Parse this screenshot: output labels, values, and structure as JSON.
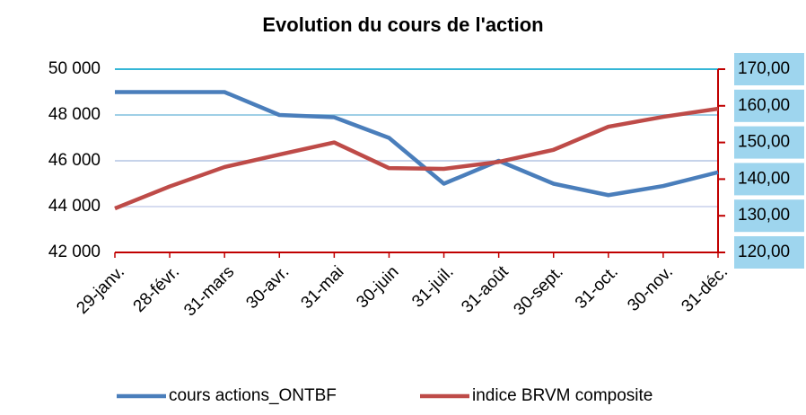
{
  "chart_data": {
    "type": "line",
    "title": "Evolution du cours de l'action",
    "categories": [
      "29-janv.",
      "28-févr.",
      "31-mars",
      "30-avr.",
      "31-mai",
      "30-juin",
      "31-juil.",
      "31-août",
      "30-sept.",
      "31-oct.",
      "30-nov.",
      "31-déc."
    ],
    "series": [
      {
        "name": "cours actions_ONTBF",
        "color": "#4a7ebb",
        "values": [
          49000,
          49000,
          49000,
          48000,
          47900,
          47000,
          45000,
          46000,
          45000,
          44500,
          44900,
          45500
        ]
      },
      {
        "name": "indice BRVM composite",
        "color": "#be4b48",
        "axis": "y2",
        "values": [
          132,
          138,
          143.3,
          146.7,
          150,
          143,
          142.8,
          144.7,
          148,
          154.3,
          157,
          159.2
        ]
      }
    ],
    "ylim": [
      42000,
      50000
    ],
    "yticks": [
      {
        "value": 42000,
        "label": "42 000"
      },
      {
        "value": 44000,
        "label": "44 000"
      },
      {
        "value": 46000,
        "label": "46 000"
      },
      {
        "value": 48000,
        "label": "48 000"
      },
      {
        "value": 50000,
        "label": "50 000"
      }
    ],
    "y2lim": [
      120,
      170
    ],
    "y2ticks": [
      {
        "value": 120,
        "label": "120,00"
      },
      {
        "value": 130,
        "label": "130,00"
      },
      {
        "value": 140,
        "label": "140,00"
      },
      {
        "value": 150,
        "label": "150,00"
      },
      {
        "value": 160,
        "label": "160,00"
      },
      {
        "value": 170,
        "label": "170,00"
      }
    ],
    "grid": true,
    "legend": "bottom"
  }
}
